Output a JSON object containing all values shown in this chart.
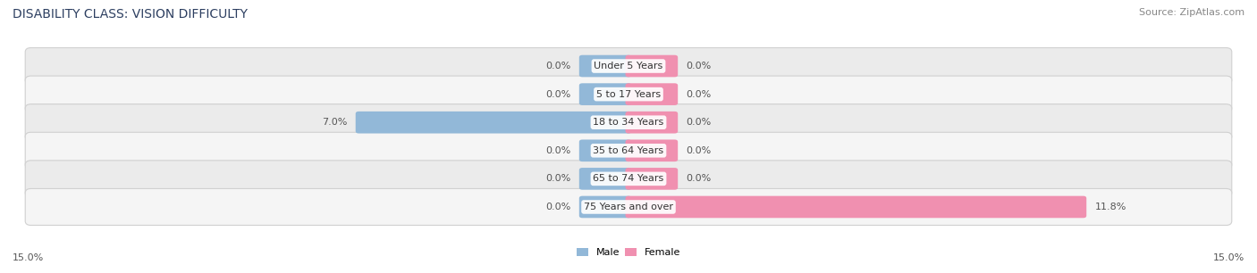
{
  "title": "DISABILITY CLASS: VISION DIFFICULTY",
  "source": "Source: ZipAtlas.com",
  "categories": [
    "Under 5 Years",
    "5 to 17 Years",
    "18 to 34 Years",
    "35 to 64 Years",
    "65 to 74 Years",
    "75 Years and over"
  ],
  "male_values": [
    0.0,
    0.0,
    7.0,
    0.0,
    0.0,
    0.0
  ],
  "female_values": [
    0.0,
    0.0,
    0.0,
    0.0,
    0.0,
    11.8
  ],
  "male_color": "#92b8d8",
  "female_color": "#f090b0",
  "row_colors": [
    "#ebebeb",
    "#f5f5f5",
    "#ebebeb",
    "#f5f5f5",
    "#ebebeb",
    "#f5f5f5"
  ],
  "fig_bg_color": "#ffffff",
  "xlim": 15.0,
  "stub_size": 1.2,
  "title_fontsize": 10,
  "source_fontsize": 8,
  "label_fontsize": 8,
  "cat_fontsize": 8,
  "bar_height": 0.62,
  "figsize": [
    14.06,
    3.06
  ],
  "dpi": 100,
  "legend_male": "Male",
  "legend_female": "Female",
  "bottom_left_label": "15.0%",
  "bottom_right_label": "15.0%"
}
